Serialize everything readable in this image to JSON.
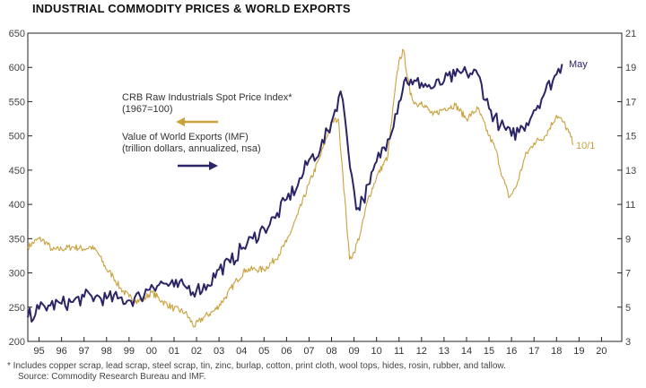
{
  "title": "INDUSTRIAL COMMODITY PRICES & WORLD EXPORTS",
  "footnote_1": "*  Includes copper scrap, lead scrap, steel scrap, tin, zinc, burlap, cotton, print cloth, wool tops, hides, rosin, rubber, and tallow.",
  "footnote_2": "Source: Commodity Research Bureau and IMF.",
  "colors": {
    "crb": "#c9a23e",
    "exports": "#2b2466",
    "axis": "#222222"
  },
  "chart_data": {
    "type": "line",
    "x_range": [
      1994.5,
      2020.9
    ],
    "left_axis": {
      "ylim": [
        200,
        650
      ],
      "ticks": [
        200,
        250,
        300,
        350,
        400,
        450,
        500,
        550,
        600,
        650
      ]
    },
    "right_axis": {
      "ylim": [
        3,
        21
      ],
      "ticks": [
        3,
        5,
        7,
        9,
        11,
        13,
        15,
        17,
        19,
        21
      ]
    },
    "x_tick_labels": [
      "95",
      "96",
      "97",
      "98",
      "99",
      "00",
      "01",
      "02",
      "03",
      "04",
      "05",
      "06",
      "07",
      "08",
      "09",
      "10",
      "11",
      "12",
      "13",
      "14",
      "15",
      "16",
      "17",
      "18",
      "19",
      "20"
    ],
    "x_tick_years": [
      1995,
      1996,
      1997,
      1998,
      1999,
      2000,
      2001,
      2002,
      2003,
      2004,
      2005,
      2006,
      2007,
      2008,
      2009,
      2010,
      2011,
      2012,
      2013,
      2014,
      2015,
      2016,
      2017,
      2018,
      2019,
      2020
    ],
    "legend": [
      {
        "label_line1": "CRB Raw Industrials Spot Price Index*",
        "label_line2": "(1967=100)",
        "axis": "left",
        "arrow": "left"
      },
      {
        "label_line1": "Value of World Exports (IMF)",
        "label_line2": "(trillion dollars, annualized, nsa)",
        "axis": "right",
        "arrow": "right"
      }
    ],
    "series": [
      {
        "name": "CRB Raw Industrials Spot Price Index",
        "axis": "left",
        "end_label": "10/1",
        "x": [
          1994.5,
          1995.0,
          1995.3,
          1995.6,
          1996.0,
          1996.5,
          1997.0,
          1997.3,
          1997.6,
          1998.0,
          1998.3,
          1998.6,
          1999.0,
          1999.3,
          1999.6,
          2000.0,
          2000.5,
          2001.0,
          2001.5,
          2001.9,
          2002.3,
          2002.8,
          2003.3,
          2003.8,
          2004.2,
          2004.6,
          2005.0,
          2005.5,
          2006.0,
          2006.5,
          2007.0,
          2007.5,
          2008.0,
          2008.3,
          2008.5,
          2008.8,
          2009.0,
          2009.3,
          2009.6,
          2010.0,
          2010.5,
          2010.8,
          2011.0,
          2011.2,
          2011.5,
          2011.8,
          2012.0,
          2012.5,
          2013.0,
          2013.5,
          2014.0,
          2014.5,
          2015.0,
          2015.3,
          2015.6,
          2015.9,
          2016.2,
          2016.6,
          2017.0,
          2017.5,
          2018.0,
          2018.3,
          2018.55,
          2018.75
        ],
        "values": [
          338,
          350,
          345,
          333,
          335,
          338,
          335,
          338,
          330,
          305,
          295,
          278,
          265,
          260,
          260,
          272,
          258,
          248,
          242,
          222,
          235,
          245,
          265,
          290,
          305,
          305,
          305,
          320,
          345,
          385,
          430,
          470,
          520,
          525,
          445,
          320,
          330,
          360,
          405,
          440,
          470,
          560,
          610,
          625,
          560,
          545,
          550,
          530,
          540,
          545,
          525,
          540,
          500,
          480,
          440,
          410,
          425,
          470,
          490,
          500,
          530,
          520,
          505,
          487
        ]
      },
      {
        "name": "Value of World Exports (IMF)",
        "axis": "right",
        "end_label": "May",
        "x": [
          1994.5,
          1995.0,
          1995.5,
          1996.0,
          1996.5,
          1997.0,
          1997.5,
          1998.0,
          1998.5,
          1999.0,
          1999.5,
          2000.0,
          2000.5,
          2001.0,
          2001.5,
          2002.0,
          2002.5,
          2003.0,
          2003.5,
          2004.0,
          2004.5,
          2005.0,
          2005.5,
          2006.0,
          2006.5,
          2007.0,
          2007.5,
          2008.0,
          2008.4,
          2008.6,
          2008.9,
          2009.1,
          2009.4,
          2009.7,
          2010.0,
          2010.5,
          2011.0,
          2011.3,
          2011.6,
          2012.0,
          2012.5,
          2013.0,
          2013.5,
          2014.0,
          2014.5,
          2015.0,
          2015.5,
          2016.0,
          2016.5,
          2017.0,
          2017.5,
          2018.0,
          2018.25
        ],
        "values": [
          4.4,
          4.9,
          5.1,
          5.2,
          5.3,
          5.6,
          5.6,
          5.5,
          5.5,
          5.4,
          5.6,
          6.3,
          6.4,
          6.2,
          6.2,
          6.0,
          6.3,
          7.2,
          7.6,
          8.4,
          9.0,
          9.6,
          10.2,
          11.3,
          12.1,
          13.6,
          14.2,
          15.8,
          17.6,
          16.0,
          12.7,
          10.7,
          11.3,
          12.2,
          13.5,
          14.8,
          17.0,
          18.4,
          18.0,
          18.1,
          17.8,
          18.2,
          18.5,
          18.7,
          18.6,
          16.6,
          15.6,
          15.0,
          15.5,
          16.5,
          17.6,
          18.6,
          19.2
        ]
      }
    ]
  }
}
